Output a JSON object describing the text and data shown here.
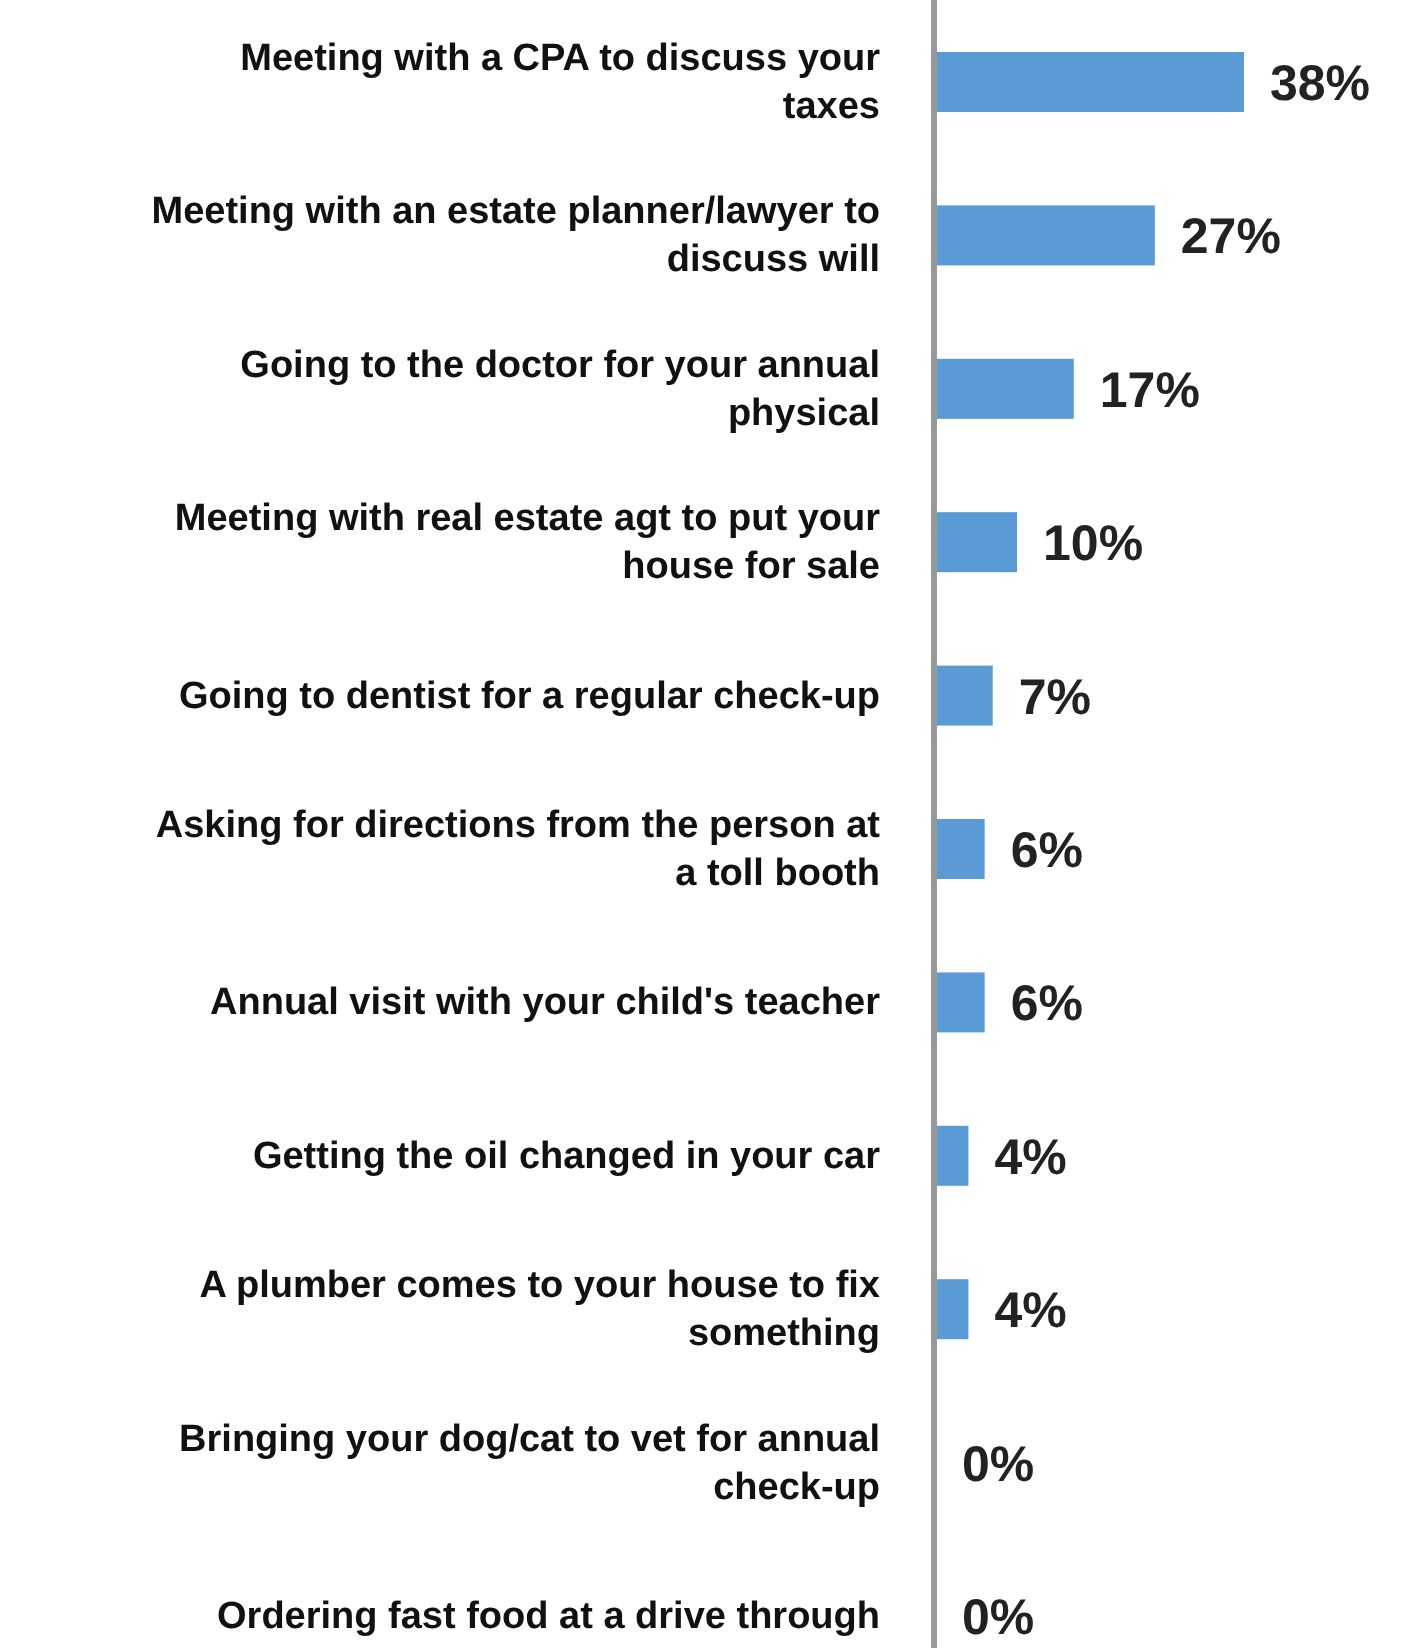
{
  "chart_data": {
    "type": "bar",
    "orientation": "horizontal",
    "categories": [
      "Meeting with a CPA to discuss your taxes",
      "Meeting with an estate planner/lawyer to discuss will",
      "Going to the doctor for your annual physical",
      "Meeting with real estate agt to put your house for sale",
      "Going to dentist for a regular check-up",
      "Asking for directions from the person at a toll booth",
      "Annual visit with your child's teacher",
      "Getting the oil changed in your car",
      "A plumber comes to your house to fix something",
      "Bringing your dog/cat to vet for annual check-up",
      "Ordering fast food at a drive through"
    ],
    "values": [
      38,
      27,
      17,
      10,
      7,
      6,
      6,
      4,
      4,
      0,
      0
    ],
    "value_labels": [
      "38%",
      "27%",
      "17%",
      "10%",
      "7%",
      "6%",
      "6%",
      "4%",
      "4%",
      "0%",
      "0%"
    ],
    "color": "#5b9bd5"
  }
}
